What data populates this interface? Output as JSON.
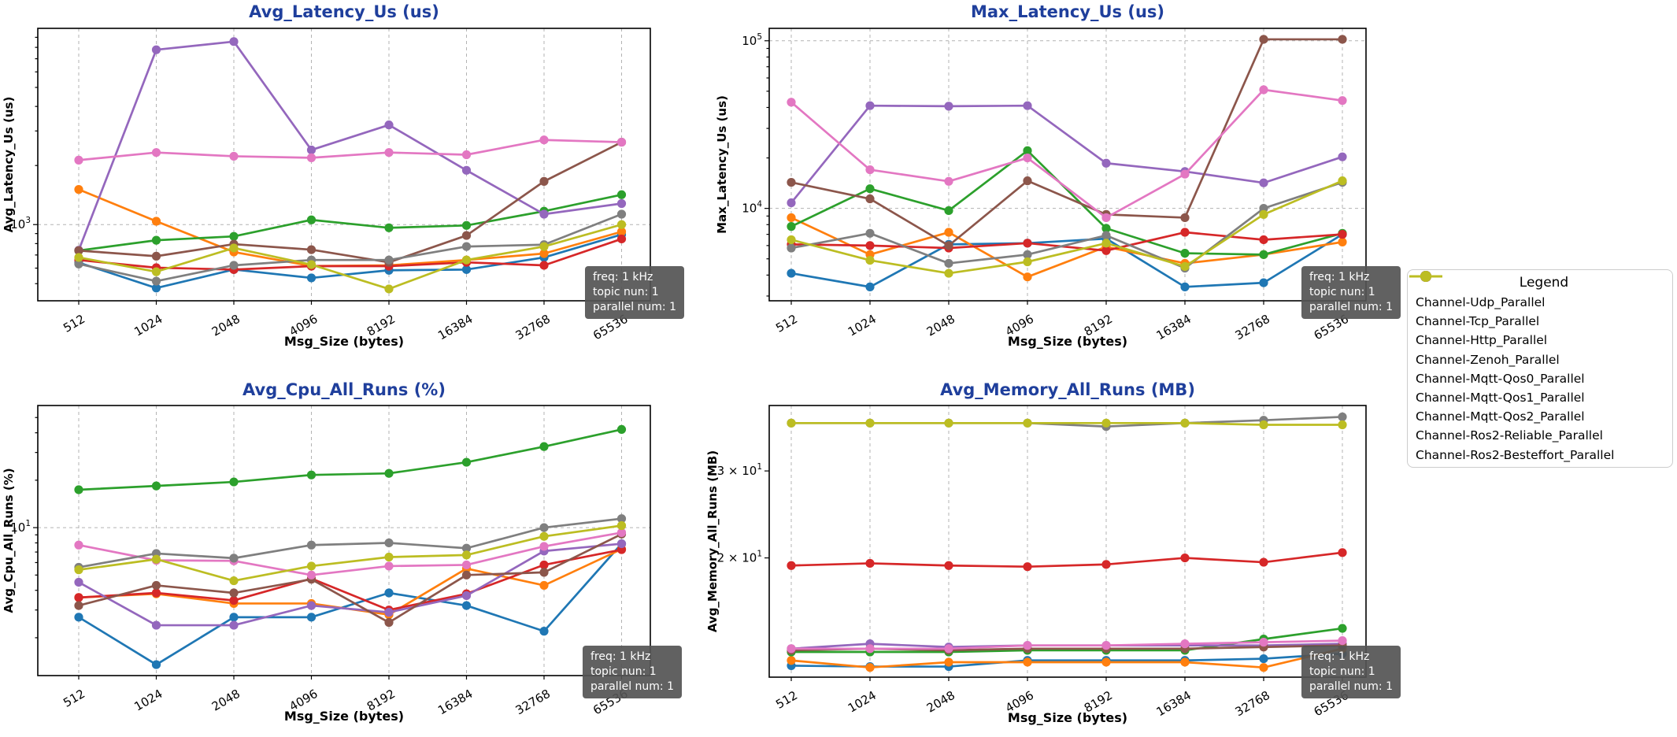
{
  "figure": {
    "background": "#ffffff",
    "title_color": "#1f3f9c",
    "grid_color": "#b3b3b3",
    "axis_color": "#000000"
  },
  "annotation": {
    "lines": [
      "freq: 1 kHz",
      "topic nun: 1",
      "parallel num: 1"
    ]
  },
  "legend": {
    "title": "Legend",
    "position": "right",
    "items": [
      {
        "label": "Channel-Udp_Parallel",
        "color": "#1f77b4"
      },
      {
        "label": "Channel-Tcp_Parallel",
        "color": "#ff7f0e"
      },
      {
        "label": "Channel-Http_Parallel",
        "color": "#2ca02c"
      },
      {
        "label": "Channel-Zenoh_Parallel",
        "color": "#d62728"
      },
      {
        "label": "Channel-Mqtt-Qos0_Parallel",
        "color": "#9467bd"
      },
      {
        "label": "Channel-Mqtt-Qos1_Parallel",
        "color": "#8c564b"
      },
      {
        "label": "Channel-Mqtt-Qos2_Parallel",
        "color": "#e377c2"
      },
      {
        "label": "Channel-Ros2-Reliable_Parallel",
        "color": "#7f7f7f"
      },
      {
        "label": "Channel-Ros2-Besteffort_Parallel",
        "color": "#bcbd22"
      }
    ]
  },
  "chart_data": [
    {
      "id": "avg_latency",
      "type": "line",
      "yscale": "log",
      "grid": true,
      "h_grid": true,
      "title": "Avg_Latency_Us  (us)",
      "xlabel": "Msg_Size (bytes)",
      "ylabel": "Avg_Latency_Us (us)",
      "categories": [
        "512",
        "1024",
        "2048",
        "4096",
        "8192",
        "16384",
        "32768",
        "65536"
      ],
      "ylim": [
        409,
        10000
      ],
      "yticks": [
        {
          "value": 1000,
          "label": "10^3"
        }
      ],
      "minor_ticks": [
        500,
        600,
        700,
        800,
        900,
        2000,
        3000,
        4000,
        5000,
        6000,
        7000,
        8000,
        9000
      ],
      "series": [
        {
          "name": "Channel-Udp_Parallel",
          "values": [
            640,
            475,
            590,
            535,
            585,
            590,
            680,
            890
          ]
        },
        {
          "name": "Channel-Tcp_Parallel",
          "values": [
            1510,
            1040,
            725,
            615,
            620,
            660,
            712,
            920
          ]
        },
        {
          "name": "Channel-Http_Parallel",
          "values": [
            737,
            832,
            871,
            1057,
            963,
            990,
            1170,
            1420
          ]
        },
        {
          "name": "Channel-Zenoh_Parallel",
          "values": [
            660,
            603,
            590,
            614,
            614,
            642,
            620,
            845
          ]
        },
        {
          "name": "Channel-Mqtt-Qos0_Parallel",
          "values": [
            740,
            7780,
            8560,
            2400,
            3220,
            1890,
            1130,
            1280
          ]
        },
        {
          "name": "Channel-Mqtt-Qos1_Parallel",
          "values": [
            737,
            690,
            795,
            745,
            642,
            880,
            1660,
            2630
          ]
        },
        {
          "name": "Channel-Mqtt-Qos2_Parallel",
          "values": [
            2130,
            2330,
            2230,
            2190,
            2330,
            2270,
            2700,
            2630
          ]
        },
        {
          "name": "Channel-Ros2-Reliable_Parallel",
          "values": [
            630,
            515,
            620,
            660,
            660,
            773,
            790,
            1130
          ]
        },
        {
          "name": "Channel-Ros2-Besteffort_Parallel",
          "values": [
            680,
            575,
            760,
            625,
            470,
            660,
            773,
            1000
          ]
        }
      ]
    },
    {
      "id": "max_latency",
      "type": "line",
      "yscale": "log",
      "grid": true,
      "h_grid": true,
      "title": "Max_Latency_Us  (us)",
      "xlabel": "Msg_Size (bytes)",
      "ylabel": "Max_Latency_Us (us)",
      "categories": [
        "512",
        "1024",
        "2048",
        "4096",
        "8192",
        "16384",
        "32768",
        "65536"
      ],
      "ylim": [
        2810,
        118600
      ],
      "yticks": [
        {
          "value": 10000,
          "label": "10^4"
        },
        {
          "value": 100000,
          "label": "10^5"
        }
      ],
      "minor_ticks": [
        3000,
        4000,
        5000,
        6000,
        7000,
        8000,
        9000,
        20000,
        30000,
        40000,
        50000,
        60000,
        70000,
        80000,
        90000
      ],
      "series": [
        {
          "name": "Channel-Udp_Parallel",
          "values": [
            4100,
            3400,
            6100,
            6200,
            6600,
            3400,
            3600,
            7000
          ]
        },
        {
          "name": "Channel-Tcp_Parallel",
          "values": [
            8800,
            5300,
            7200,
            3900,
            5900,
            4700,
            5300,
            6300
          ]
        },
        {
          "name": "Channel-Http_Parallel",
          "values": [
            7800,
            13100,
            9700,
            22100,
            7600,
            5400,
            5300,
            7100
          ]
        },
        {
          "name": "Channel-Zenoh_Parallel",
          "values": [
            6100,
            6000,
            5800,
            6200,
            5600,
            7200,
            6500,
            7000
          ]
        },
        {
          "name": "Channel-Mqtt-Qos0_Parallel",
          "values": [
            10800,
            41000,
            40700,
            41000,
            18600,
            16600,
            14200,
            20300
          ]
        },
        {
          "name": "Channel-Mqtt-Qos1_Parallel",
          "values": [
            14300,
            11400,
            6000,
            14600,
            9200,
            8800,
            102000,
            102000
          ]
        },
        {
          "name": "Channel-Mqtt-Qos2_Parallel",
          "values": [
            43000,
            17000,
            14500,
            20000,
            8800,
            16000,
            51000,
            44000
          ]
        },
        {
          "name": "Channel-Ros2-Reliable_Parallel",
          "values": [
            5800,
            7100,
            4700,
            5300,
            6900,
            4400,
            10000,
            14300
          ]
        },
        {
          "name": "Channel-Ros2-Besteffort_Parallel",
          "values": [
            6500,
            4900,
            4100,
            4800,
            6200,
            4500,
            9200,
            14600
          ]
        }
      ]
    },
    {
      "id": "avg_cpu",
      "type": "line",
      "yscale": "log",
      "grid": true,
      "h_grid": true,
      "title": "Avg_Cpu_All_Runs  (%)",
      "xlabel": "Msg_Size (bytes)",
      "ylabel": "Avg_Cpu_All_Runs (%)",
      "categories": [
        "512",
        "1024",
        "2048",
        "4096",
        "8192",
        "16384",
        "32768",
        "65536"
      ],
      "ylim": [
        1.15,
        59.6
      ],
      "yticks": [
        {
          "value": 10,
          "label": "10^1"
        }
      ],
      "minor_ticks": [
        2,
        3,
        4,
        5,
        6,
        7,
        8,
        9,
        20,
        30,
        40,
        50
      ],
      "series": [
        {
          "name": "Channel-Udp_Parallel",
          "values": [
            2.7,
            1.35,
            2.7,
            2.7,
            3.85,
            3.2,
            2.2,
            7.9
          ]
        },
        {
          "name": "Channel-Tcp_Parallel",
          "values": [
            3.6,
            3.8,
            3.3,
            3.3,
            2.8,
            5.5,
            4.3,
            7.3
          ]
        },
        {
          "name": "Channel-Http_Parallel",
          "values": [
            17.4,
            18.4,
            19.5,
            21.6,
            22.1,
            26.0,
            32.7,
            42.0
          ]
        },
        {
          "name": "Channel-Zenoh_Parallel",
          "values": [
            3.6,
            3.85,
            3.45,
            4.75,
            3.0,
            3.8,
            5.8,
            7.25
          ]
        },
        {
          "name": "Channel-Mqtt-Qos0_Parallel",
          "values": [
            4.5,
            2.4,
            2.4,
            3.2,
            2.9,
            3.7,
            7.1,
            7.9
          ]
        },
        {
          "name": "Channel-Mqtt-Qos1_Parallel",
          "values": [
            3.2,
            4.3,
            3.85,
            4.7,
            2.5,
            5.0,
            5.2,
            9.1
          ]
        },
        {
          "name": "Channel-Mqtt-Qos2_Parallel",
          "values": [
            7.75,
            6.2,
            6.15,
            5.0,
            5.7,
            5.8,
            7.6,
            9.3
          ]
        },
        {
          "name": "Channel-Ros2-Reliable_Parallel",
          "values": [
            5.6,
            6.85,
            6.4,
            7.75,
            8.0,
            7.4,
            10.0,
            11.4
          ]
        },
        {
          "name": "Channel-Ros2-Besteffort_Parallel",
          "values": [
            5.4,
            6.3,
            4.6,
            5.7,
            6.5,
            6.7,
            8.8,
            10.3
          ]
        }
      ]
    },
    {
      "id": "avg_memory",
      "type": "line",
      "yscale": "log",
      "grid": true,
      "h_grid": false,
      "title": "Avg_Memory_All_Runs  (MB)",
      "xlabel": "Msg_Size (bytes)",
      "ylabel": "Avg_Memory_All_Runs (MB)",
      "categories": [
        "512",
        "1024",
        "2048",
        "4096",
        "8192",
        "16384",
        "32768",
        "65536"
      ],
      "ylim": [
        11.47,
        40.7
      ],
      "yticks": [
        {
          "value": 20,
          "label": "2 × 10^1"
        },
        {
          "value": 30,
          "label": "3 × 10^1"
        }
      ],
      "minor_ticks": [],
      "series": [
        {
          "name": "Channel-Udp_Parallel",
          "values": [
            12.1,
            12.05,
            12.05,
            12.4,
            12.4,
            12.4,
            12.5,
            12.8
          ]
        },
        {
          "name": "Channel-Tcp_Parallel",
          "values": [
            12.4,
            12.0,
            12.3,
            12.3,
            12.3,
            12.3,
            12.0,
            13.1
          ]
        },
        {
          "name": "Channel-Http_Parallel",
          "values": [
            12.9,
            12.9,
            12.9,
            13.0,
            13.0,
            13.0,
            13.7,
            14.4
          ]
        },
        {
          "name": "Channel-Zenoh_Parallel",
          "values": [
            19.3,
            19.5,
            19.3,
            19.2,
            19.4,
            20.0,
            19.6,
            20.5
          ]
        },
        {
          "name": "Channel-Mqtt-Qos0_Parallel",
          "values": [
            13.1,
            13.4,
            13.2,
            13.3,
            13.3,
            13.3,
            13.3,
            13.4
          ]
        },
        {
          "name": "Channel-Mqtt-Qos1_Parallel",
          "values": [
            13.0,
            13.1,
            13.0,
            13.1,
            13.1,
            13.1,
            13.2,
            13.3
          ]
        },
        {
          "name": "Channel-Mqtt-Qos2_Parallel",
          "values": [
            13.1,
            13.1,
            13.1,
            13.3,
            13.3,
            13.4,
            13.5,
            13.6
          ]
        },
        {
          "name": "Channel-Ros2-Reliable_Parallel",
          "values": [
            37.5,
            37.5,
            37.5,
            37.5,
            36.9,
            37.5,
            38.0,
            38.6
          ]
        },
        {
          "name": "Channel-Ros2-Besteffort_Parallel",
          "values": [
            37.5,
            37.5,
            37.5,
            37.5,
            37.5,
            37.5,
            37.2,
            37.2
          ]
        }
      ]
    }
  ]
}
